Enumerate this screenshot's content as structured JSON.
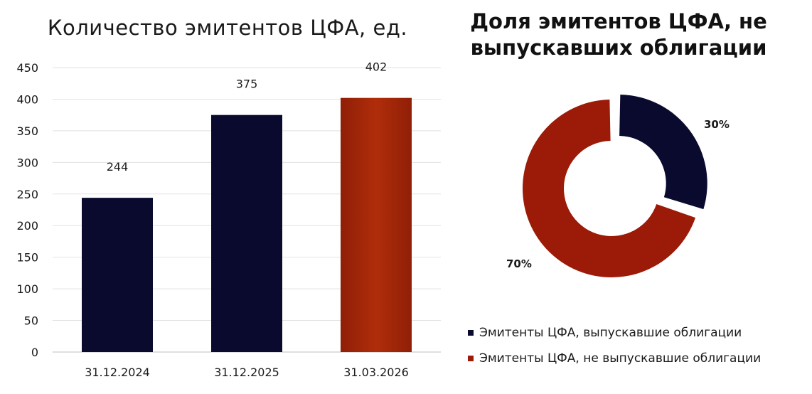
{
  "chart_data": [
    {
      "type": "bar",
      "title": "Количество эмитентов ЦФА, ед.",
      "categories": [
        "31.12.2024",
        "31.12.2025",
        "31.03.2026"
      ],
      "values": [
        244,
        375,
        402
      ],
      "data_labels": [
        "244",
        "375",
        "402"
      ],
      "ylim": [
        0,
        450
      ],
      "yticks": [
        "0",
        "50",
        "100",
        "150",
        "200",
        "250",
        "300",
        "350",
        "400",
        "450"
      ],
      "grid": true,
      "colors": [
        "#0a0a2e",
        "#0a0a2e",
        "#a32408"
      ]
    },
    {
      "type": "pie",
      "title": "Доля эмитентов ЦФА, не выпускавших облигации",
      "categories": [
        "Эмитенты ЦФА, выпускавшие облигации",
        "Эмитенты ЦФА, не выпускавшие облигации"
      ],
      "values": [
        30,
        70
      ],
      "data_labels": [
        "30%",
        "70%"
      ],
      "colors": [
        "#0a0a2e",
        "#9c1a08"
      ],
      "legend": "bottom"
    }
  ]
}
